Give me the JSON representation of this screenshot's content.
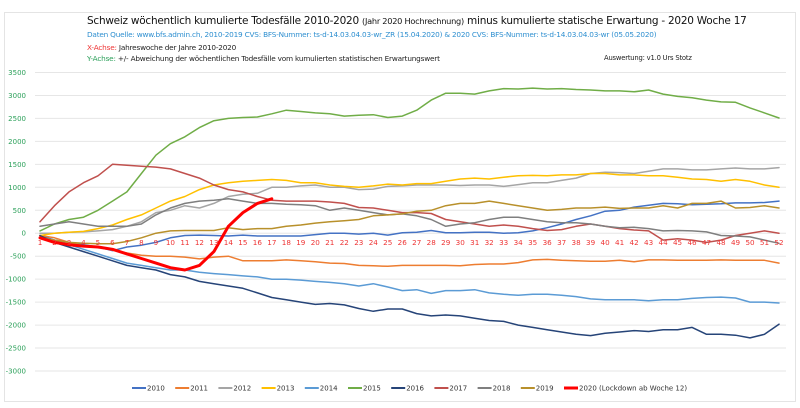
{
  "header": {
    "title_main": "Schweiz wöchentlich kumulierte Todesfälle 2010-2020",
    "title_paren": "(Jahr 2020 Hochrechnung)",
    "title_rest": "minus kumulierte statische Erwartung -  2020  Woche 17",
    "source": "Daten Quelle: www.bfs.admin.ch,  2010-2019 CVS: BFS-Nummer: ts-d-14.03.04.03-wr_ZR (15.04.2020)   &   2020 CVS: BFS-Nummer: ts-d-14.03.04.03-wr (05.05.2020)",
    "x_label_key": "X-Achse:",
    "x_label_text": "Jahreswoche der Jahre 2010-2020",
    "y_label_key": "Y-Achse:",
    "y_label_text": "+/- Abweichung der wöchentlichen Todesfälle vom kumulierten statistischen Erwartungswert",
    "author": "Auswertung: v1.0 Urs Stotz"
  },
  "chart_data": {
    "type": "line",
    "title": "Schweiz wöchentlich kumulierte Todesfälle 2010-2020 (Jahr 2020 Hochrechnung) minus kumulierte statische Erwartung - 2020 Woche 17",
    "xlabel": "Jahreswoche der Jahre 2010-2020",
    "ylabel": "+/- Abweichung der wöchentlichen Todesfälle vom kumulierten statistischen Erwartungswert",
    "ylim": [
      -3000,
      3500
    ],
    "yticks": [
      3500,
      3000,
      2500,
      2000,
      1500,
      1000,
      500,
      0,
      -500,
      -1000,
      -1500,
      -2000,
      -2500,
      -3000
    ],
    "x": [
      1,
      2,
      3,
      4,
      5,
      6,
      7,
      8,
      9,
      10,
      11,
      12,
      13,
      14,
      15,
      16,
      17,
      18,
      19,
      20,
      21,
      22,
      23,
      24,
      25,
      26,
      27,
      28,
      29,
      30,
      31,
      32,
      33,
      34,
      35,
      36,
      37,
      38,
      39,
      40,
      41,
      42,
      43,
      44,
      45,
      46,
      47,
      48,
      49,
      50,
      51,
      52
    ],
    "grid": true,
    "legend_position": "bottom",
    "series": [
      {
        "name": "2010",
        "color": "#4472c4",
        "values": [
          -50,
          -150,
          -200,
          -250,
          -300,
          -380,
          -300,
          -260,
          -200,
          -100,
          -50,
          -40,
          -50,
          -60,
          -40,
          -60,
          -60,
          -60,
          -60,
          -30,
          0,
          0,
          -20,
          0,
          -40,
          10,
          20,
          60,
          10,
          10,
          20,
          20,
          0,
          10,
          50,
          120,
          200,
          300,
          380,
          480,
          500,
          570,
          610,
          650,
          640,
          620,
          630,
          640,
          660,
          660,
          670,
          700
        ]
      },
      {
        "name": "2011",
        "color": "#ed7d31",
        "values": [
          -50,
          -100,
          -200,
          -270,
          -300,
          -370,
          -430,
          -480,
          -500,
          -500,
          -520,
          -560,
          -520,
          -500,
          -600,
          -600,
          -600,
          -580,
          -600,
          -620,
          -650,
          -660,
          -700,
          -710,
          -720,
          -700,
          -700,
          -700,
          -700,
          -710,
          -680,
          -670,
          -670,
          -640,
          -580,
          -570,
          -590,
          -600,
          -610,
          -610,
          -590,
          -620,
          -580,
          -580,
          -590,
          -590,
          -590,
          -580,
          -590,
          -590,
          -590,
          -650
        ]
      },
      {
        "name": "2012",
        "color": "#a5a5a5",
        "values": [
          0,
          0,
          20,
          30,
          50,
          80,
          150,
          250,
          450,
          500,
          600,
          550,
          650,
          800,
          850,
          870,
          1000,
          1000,
          1030,
          1050,
          1000,
          1000,
          950,
          960,
          1020,
          1030,
          1050,
          1050,
          1050,
          1040,
          1050,
          1050,
          1020,
          1060,
          1100,
          1100,
          1150,
          1200,
          1300,
          1330,
          1320,
          1300,
          1350,
          1400,
          1400,
          1380,
          1380,
          1400,
          1420,
          1400,
          1400,
          1430
        ]
      },
      {
        "name": "2013",
        "color": "#ffc000",
        "values": [
          -50,
          0,
          20,
          40,
          100,
          180,
          300,
          400,
          550,
          700,
          800,
          950,
          1050,
          1100,
          1130,
          1150,
          1170,
          1150,
          1100,
          1100,
          1050,
          1020,
          1000,
          1030,
          1070,
          1050,
          1080,
          1080,
          1130,
          1180,
          1200,
          1180,
          1220,
          1250,
          1260,
          1250,
          1270,
          1270,
          1300,
          1300,
          1270,
          1270,
          1250,
          1250,
          1220,
          1180,
          1170,
          1130,
          1170,
          1130,
          1050,
          1000
        ]
      },
      {
        "name": "2014",
        "color": "#5b9bd5",
        "values": [
          -100,
          -150,
          -250,
          -350,
          -450,
          -550,
          -650,
          -700,
          -750,
          -800,
          -800,
          -850,
          -880,
          -900,
          -930,
          -950,
          -1000,
          -1000,
          -1020,
          -1050,
          -1070,
          -1100,
          -1150,
          -1100,
          -1170,
          -1250,
          -1230,
          -1310,
          -1250,
          -1250,
          -1230,
          -1300,
          -1330,
          -1350,
          -1330,
          -1330,
          -1350,
          -1380,
          -1430,
          -1450,
          -1450,
          -1450,
          -1470,
          -1450,
          -1450,
          -1420,
          -1400,
          -1390,
          -1410,
          -1500,
          -1500,
          -1520
        ]
      },
      {
        "name": "2015",
        "color": "#70ad47",
        "values": [
          50,
          200,
          300,
          350,
          500,
          700,
          900,
          1300,
          1700,
          1950,
          2100,
          2300,
          2450,
          2500,
          2520,
          2530,
          2600,
          2680,
          2650,
          2620,
          2600,
          2550,
          2570,
          2580,
          2520,
          2550,
          2680,
          2900,
          3050,
          3050,
          3030,
          3100,
          3150,
          3140,
          3160,
          3140,
          3150,
          3130,
          3120,
          3100,
          3100,
          3080,
          3120,
          3030,
          2980,
          2950,
          2900,
          2860,
          2850,
          2730,
          2620,
          2510
        ]
      },
      {
        "name": "2016",
        "color": "#264478",
        "values": [
          -50,
          -200,
          -300,
          -400,
          -500,
          -600,
          -700,
          -750,
          -800,
          -900,
          -950,
          -1050,
          -1100,
          -1150,
          -1200,
          -1300,
          -1400,
          -1450,
          -1500,
          -1550,
          -1530,
          -1560,
          -1640,
          -1700,
          -1650,
          -1650,
          -1750,
          -1800,
          -1780,
          -1800,
          -1850,
          -1900,
          -1920,
          -2000,
          -2050,
          -2100,
          -2150,
          -2200,
          -2230,
          -2180,
          -2150,
          -2120,
          -2140,
          -2100,
          -2100,
          -2050,
          -2200,
          -2200,
          -2220,
          -2280,
          -2200,
          -1980
        ]
      },
      {
        "name": "2017",
        "color": "#c0504d",
        "values": [
          250,
          600,
          900,
          1100,
          1250,
          1500,
          1480,
          1460,
          1440,
          1400,
          1300,
          1200,
          1050,
          950,
          900,
          800,
          720,
          700,
          700,
          700,
          680,
          650,
          560,
          550,
          500,
          450,
          450,
          430,
          300,
          250,
          200,
          150,
          180,
          150,
          100,
          60,
          80,
          150,
          200,
          150,
          100,
          70,
          50,
          -150,
          -120,
          -150,
          -200,
          -150,
          -50,
          0,
          50,
          0
        ]
      },
      {
        "name": "2018",
        "color": "#7f7f7f",
        "values": [
          150,
          200,
          250,
          200,
          150,
          150,
          150,
          200,
          400,
          550,
          650,
          700,
          720,
          750,
          700,
          650,
          650,
          630,
          620,
          600,
          500,
          550,
          500,
          450,
          400,
          420,
          380,
          300,
          150,
          200,
          230,
          300,
          350,
          350,
          300,
          250,
          230,
          230,
          200,
          150,
          120,
          130,
          100,
          50,
          60,
          50,
          30,
          -50,
          -60,
          -80,
          -150,
          -220
        ]
      },
      {
        "name": "2019",
        "color": "#b8902b",
        "values": [
          -100,
          -150,
          -200,
          -220,
          -230,
          -230,
          -180,
          -100,
          0,
          50,
          60,
          60,
          60,
          120,
          80,
          100,
          100,
          150,
          180,
          220,
          250,
          270,
          300,
          380,
          400,
          420,
          480,
          500,
          600,
          650,
          650,
          700,
          650,
          600,
          550,
          500,
          520,
          550,
          550,
          570,
          540,
          550,
          550,
          600,
          550,
          650,
          650,
          700,
          550,
          560,
          600,
          550
        ]
      },
      {
        "name": "2020 (Lockdown ab Woche 12)",
        "color": "#ff0000",
        "values": [
          -100,
          -200,
          -250,
          -280,
          -300,
          -350,
          -450,
          -550,
          -650,
          -750,
          -800,
          -700,
          -400,
          150,
          450,
          650,
          750
        ]
      }
    ]
  }
}
